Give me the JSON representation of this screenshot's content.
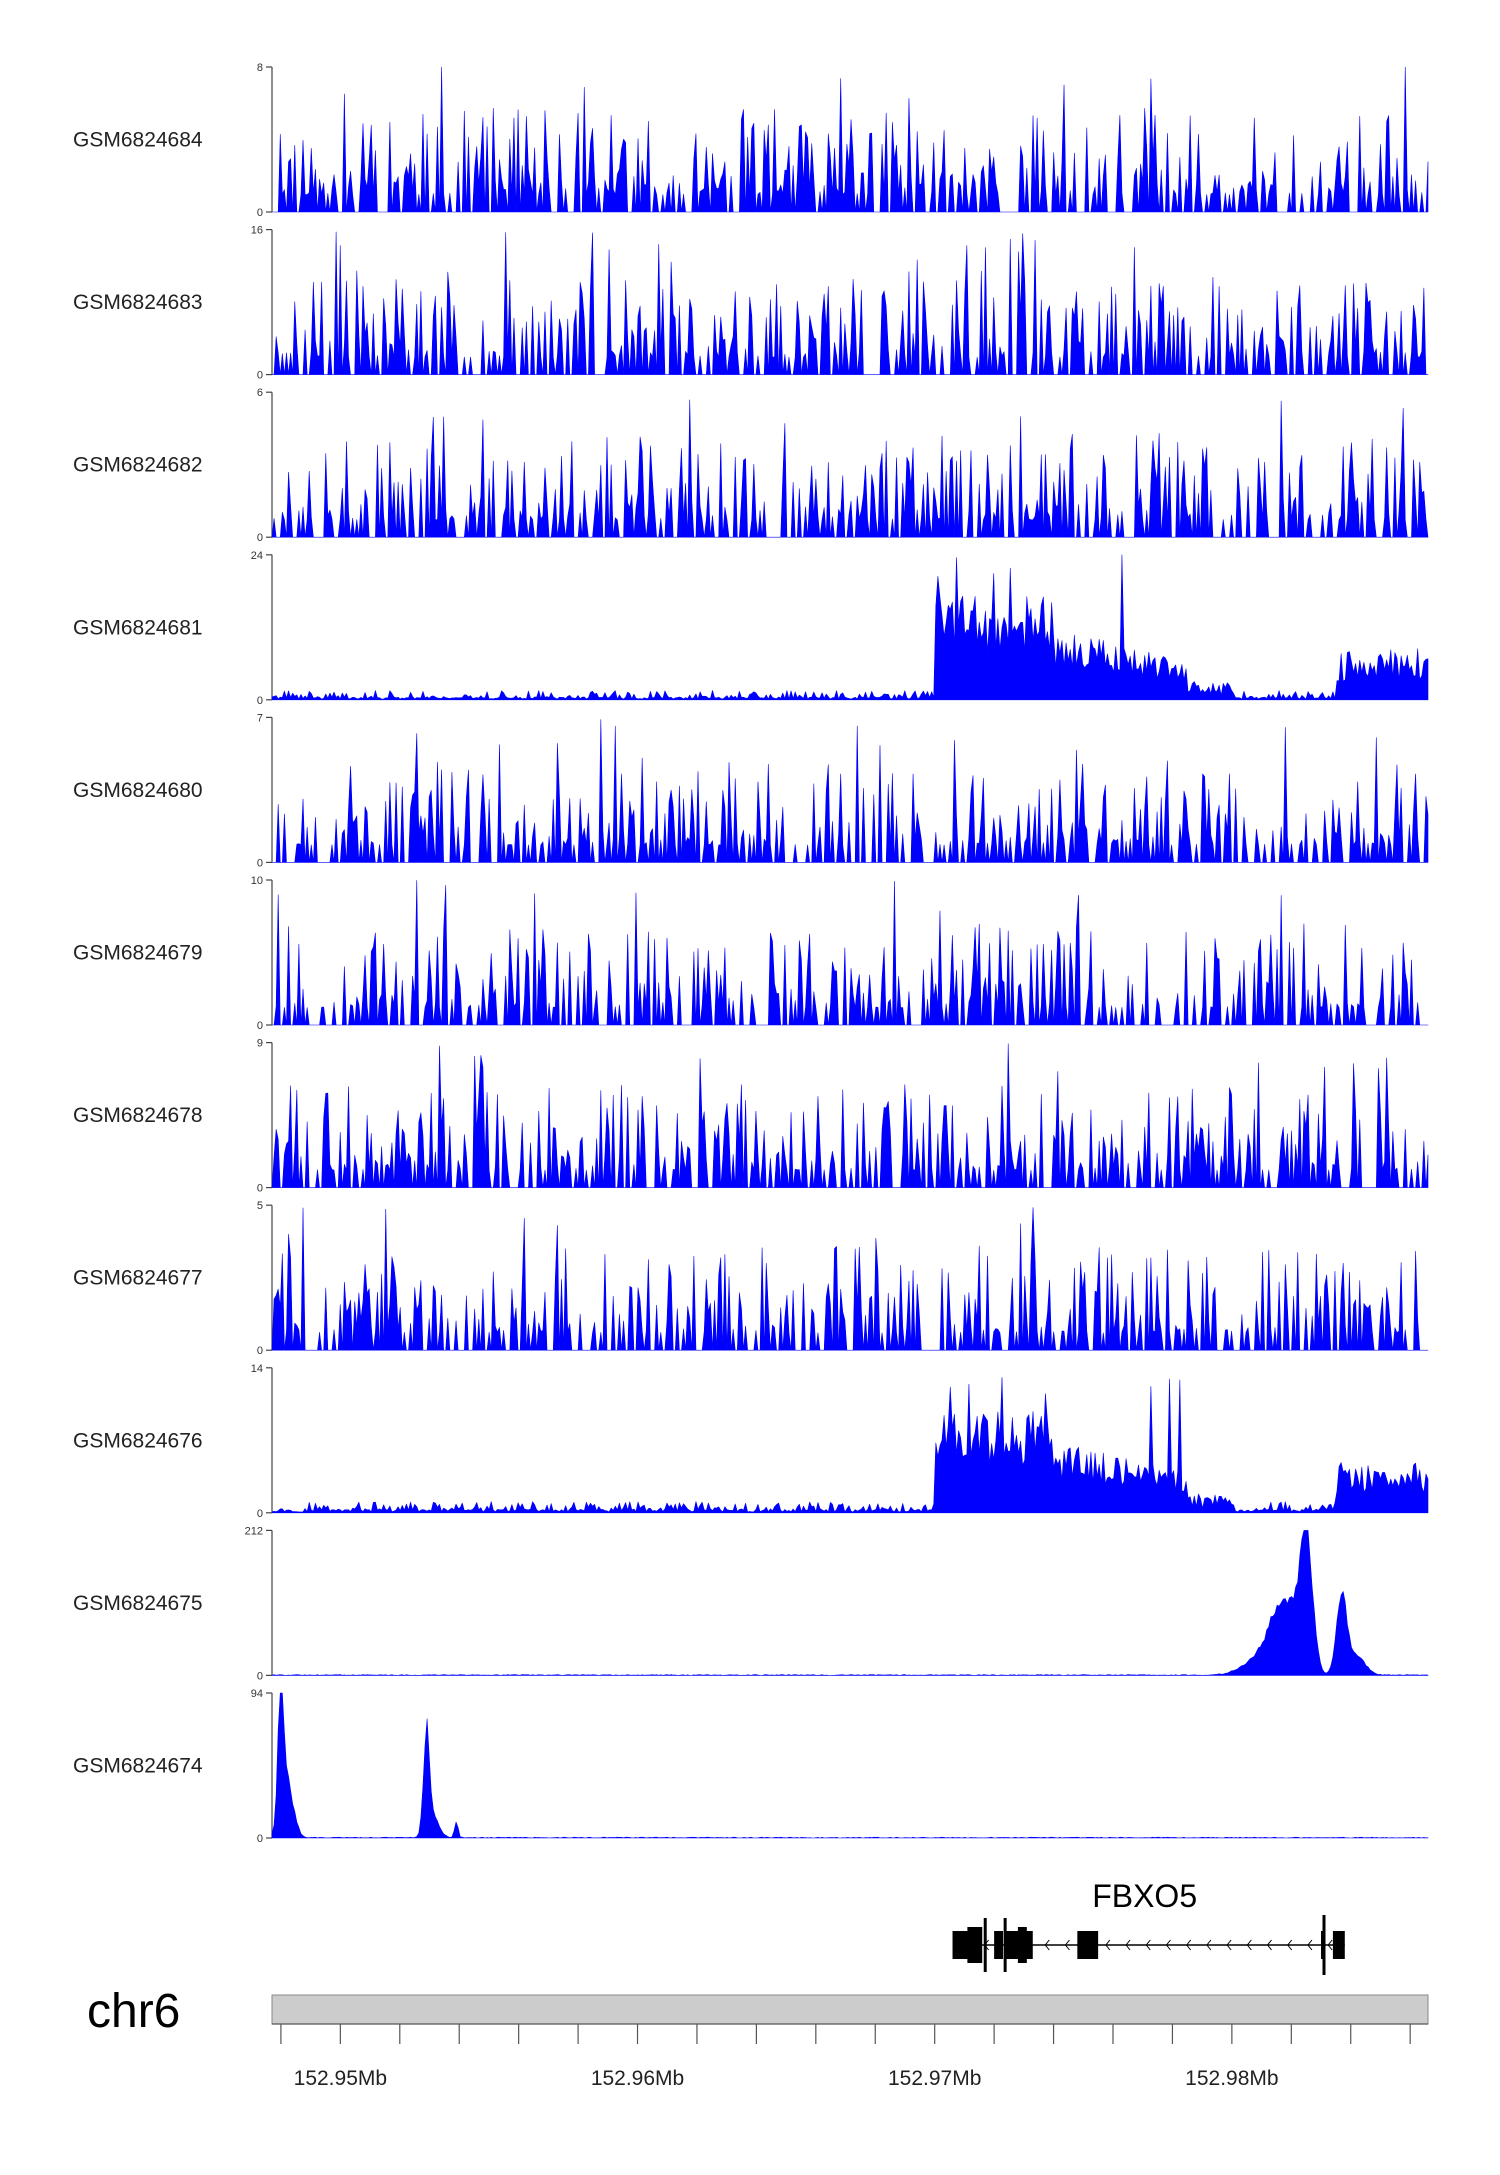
{
  "chart_data": {
    "type": "area",
    "chromosome": "chr6",
    "xlim": [
      152.9477,
      152.9866
    ],
    "axis_ticks": [
      152.95,
      152.96,
      152.97,
      152.98
    ],
    "axis_tick_labels": [
      "152.95Mb",
      "152.96Mb",
      "152.97Mb",
      "152.98Mb"
    ],
    "fill_color": "#0000ff",
    "tracks": [
      {
        "name": "GSM6824684",
        "ylim": [
          0,
          8
        ],
        "ymax_label": "8",
        "ymin_label": "0",
        "profile": "noise",
        "seed": 11,
        "mean_frac": 0.22
      },
      {
        "name": "GSM6824683",
        "ylim": [
          0,
          16
        ],
        "ymax_label": "16",
        "ymin_label": "0",
        "profile": "noise",
        "seed": 23,
        "mean_frac": 0.22
      },
      {
        "name": "GSM6824682",
        "ylim": [
          0,
          6
        ],
        "ymax_label": "6",
        "ymin_label": "0",
        "profile": "noise",
        "seed": 37,
        "mean_frac": 0.3
      },
      {
        "name": "GSM6824681",
        "ylim": [
          0,
          24
        ],
        "ymax_label": "24",
        "ymin_label": "0",
        "profile": "right_high",
        "seed": 41,
        "mean_frac": 0.05
      },
      {
        "name": "GSM6824680",
        "ylim": [
          0,
          7
        ],
        "ymax_label": "7",
        "ymin_label": "0",
        "profile": "noise",
        "seed": 53,
        "mean_frac": 0.25
      },
      {
        "name": "GSM6824679",
        "ylim": [
          0,
          10
        ],
        "ymax_label": "10",
        "ymin_label": "0",
        "profile": "noise",
        "seed": 67,
        "mean_frac": 0.2
      },
      {
        "name": "GSM6824678",
        "ylim": [
          0,
          9
        ],
        "ymax_label": "9",
        "ymin_label": "0",
        "profile": "noise",
        "seed": 71,
        "mean_frac": 0.22
      },
      {
        "name": "GSM6824677",
        "ylim": [
          0,
          5
        ],
        "ymax_label": "5",
        "ymin_label": "0",
        "profile": "noise",
        "seed": 83,
        "mean_frac": 0.28
      },
      {
        "name": "GSM6824676",
        "ylim": [
          0,
          14
        ],
        "ymax_label": "14",
        "ymin_label": "0",
        "profile": "right_high",
        "seed": 97,
        "mean_frac": 0.06
      },
      {
        "name": "GSM6824675",
        "ylim": [
          0,
          212
        ],
        "ymax_label": "212",
        "ymin_label": "0",
        "profile": "peaks",
        "seed": 101,
        "peaks": [
          [
            152.9825,
            212,
            0.0003
          ],
          [
            152.9818,
            100,
            0.0006
          ],
          [
            152.9837,
            120,
            0.00025
          ],
          [
            152.9842,
            30,
            0.0004
          ],
          [
            152.9812,
            35,
            0.0009
          ]
        ]
      },
      {
        "name": "GSM6824674",
        "ylim": [
          0,
          94
        ],
        "ymax_label": "94",
        "ymin_label": "0",
        "profile": "peaks",
        "seed": 113,
        "peaks": [
          [
            152.948,
            94,
            0.00013
          ],
          [
            152.9482,
            40,
            0.0003
          ],
          [
            152.9529,
            70,
            0.00014
          ],
          [
            152.9539,
            12,
            8e-05
          ],
          [
            152.9531,
            15,
            0.0003
          ]
        ]
      }
    ],
    "gene": {
      "name": "FBXO5",
      "strand": "-",
      "start": 152.9706,
      "end": 152.9838,
      "exons": [
        [
          152.9706,
          152.9714
        ],
        [
          152.972,
          152.9723
        ],
        [
          152.9724,
          152.9733
        ],
        [
          152.9748,
          152.9755
        ],
        [
          152.983,
          152.9831
        ],
        [
          152.9834,
          152.9838
        ]
      ],
      "utrs": [
        [
          152.9711,
          152.9716
        ],
        [
          152.9728,
          152.9731
        ]
      ]
    }
  }
}
